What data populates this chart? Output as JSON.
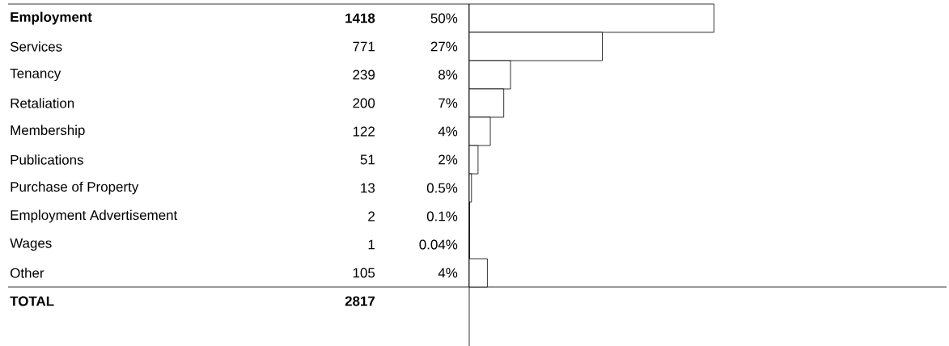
{
  "chart_data": {
    "type": "bar",
    "orientation": "horizontal",
    "categories": [
      "Employment",
      "Services",
      "Tenancy",
      "Retaliation",
      "Membership",
      "Publications",
      "Purchase of Property",
      "Employment Advertisement",
      "Wages",
      "Other"
    ],
    "values": [
      1418,
      771,
      239,
      200,
      122,
      51,
      13,
      2,
      1,
      105
    ],
    "data_labels": true,
    "color": "#ffffff",
    "annotations": [
      "50%",
      "27%",
      "8%",
      "7%",
      "4%",
      "2%",
      "0.5%",
      "0.1%",
      "0.04%",
      "4%",
      "TOTAL",
      "2817"
    ]
  }
}
